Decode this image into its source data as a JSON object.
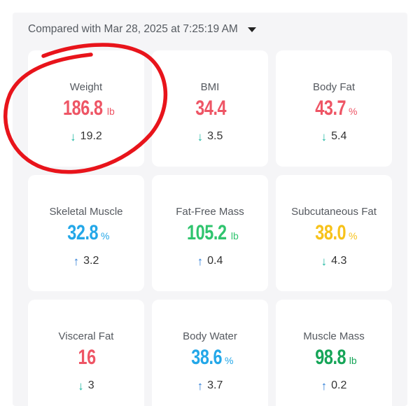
{
  "compare": {
    "label": "Compared with Mar 28, 2025 at 7:25:19 AM"
  },
  "colors": {
    "red": "#ee5565",
    "blue": "#23a7e8",
    "green": "#2fc46e",
    "yellow": "#f7c21a",
    "dark_green": "#16a558",
    "arrow_down": "#21b9a3",
    "arrow_up": "#2a7bd6",
    "annotation_circle": "#e8141b"
  },
  "metrics": [
    {
      "label": "Weight",
      "value": "186.8",
      "unit": "lb",
      "change": "19.2",
      "direction": "down",
      "color": "red"
    },
    {
      "label": "BMI",
      "value": "34.4",
      "unit": "",
      "change": "3.5",
      "direction": "down",
      "color": "red"
    },
    {
      "label": "Body Fat",
      "value": "43.7",
      "unit": "%",
      "change": "5.4",
      "direction": "down",
      "color": "red"
    },
    {
      "label": "Skeletal Muscle",
      "value": "32.8",
      "unit": "%",
      "change": "3.2",
      "direction": "up",
      "color": "blue"
    },
    {
      "label": "Fat-Free Mass",
      "value": "105.2",
      "unit": "lb",
      "change": "0.4",
      "direction": "up",
      "color": "green"
    },
    {
      "label": "Subcutaneous Fat",
      "value": "38.0",
      "unit": "%",
      "change": "4.3",
      "direction": "down",
      "color": "yellow"
    },
    {
      "label": "Visceral Fat",
      "value": "16",
      "unit": "",
      "change": "3",
      "direction": "down",
      "color": "red"
    },
    {
      "label": "Body Water",
      "value": "38.6",
      "unit": "%",
      "change": "3.7",
      "direction": "up",
      "color": "blue"
    },
    {
      "label": "Muscle Mass",
      "value": "98.8",
      "unit": "lb",
      "change": "0.2",
      "direction": "up",
      "color": "dark_green"
    }
  ]
}
